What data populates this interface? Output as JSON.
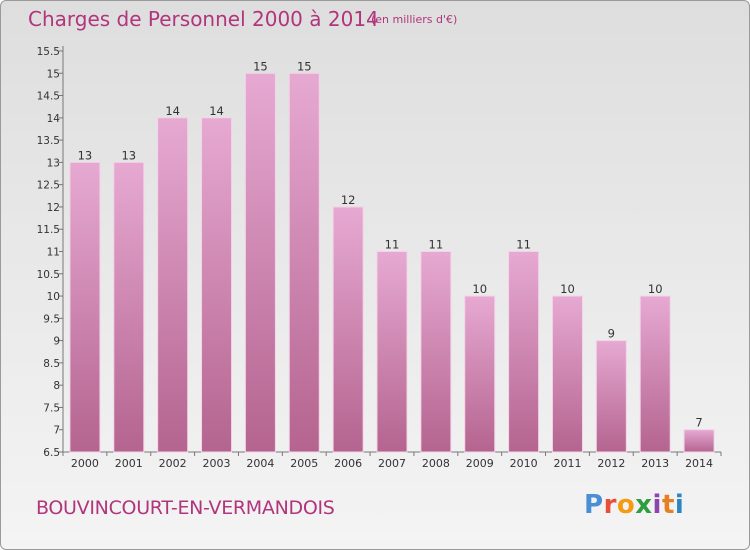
{
  "header": {
    "title": "Charges de Personnel 2000 à 2014",
    "subtitle": "(en milliers d'€)"
  },
  "footer": {
    "commune": "BOUVINCOURT-EN-VERMANDOIS",
    "logo": [
      "P",
      "r",
      "o",
      "x",
      "i",
      "t",
      "i"
    ],
    "logo_colors": [
      "#4a8fd6",
      "#e94d3c",
      "#f39c12",
      "#2e9e3e",
      "#8e44ad",
      "#e67e22",
      "#2e86c1"
    ]
  },
  "colors": {
    "bar_top": "#e6a9d2",
    "bar_bottom": "#b4648f",
    "bar_edge": "#f3d3e6",
    "text": "#b1357c"
  },
  "chart_data": {
    "type": "bar",
    "categories": [
      "2000",
      "2001",
      "2002",
      "2003",
      "2004",
      "2005",
      "2006",
      "2007",
      "2008",
      "2009",
      "2010",
      "2011",
      "2012",
      "2013",
      "2014"
    ],
    "values": [
      13,
      13,
      14,
      14,
      15,
      15,
      12,
      11,
      11,
      10,
      11,
      10,
      9,
      10,
      7
    ],
    "value_labels": [
      "13",
      "13",
      "14",
      "14",
      "15",
      "15",
      "12",
      "11",
      "11",
      "10",
      "11",
      "10",
      "9",
      "10",
      "7"
    ],
    "yticks": [
      "6.5",
      "7",
      "7.5",
      "8",
      "8.5",
      "9",
      "9.5",
      "10",
      "10.5",
      "11",
      "11.5",
      "12",
      "12.5",
      "13",
      "13.5",
      "14",
      "14.5",
      "15",
      "15.5"
    ],
    "ylim": [
      6.5,
      15.5
    ],
    "grid": false
  }
}
